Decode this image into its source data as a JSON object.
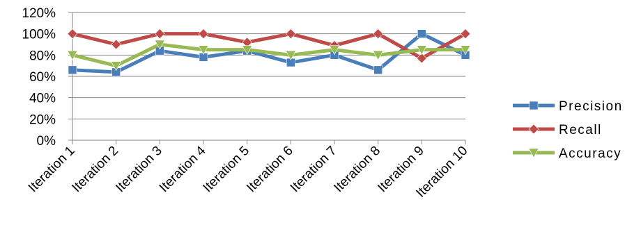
{
  "chart_data": {
    "type": "line",
    "categories": [
      "Iteration 1",
      "Iteration 2",
      "Iteration 3",
      "Iteration 4",
      "Iteration 5",
      "Iteration 6",
      "Iteration 7",
      "Iteration 8",
      "Iteration 9",
      "Iteration 10"
    ],
    "series": [
      {
        "name": "Precision",
        "color": "#4a7ebb",
        "marker": "square",
        "values": [
          66,
          64,
          84,
          78,
          84,
          73,
          80,
          66,
          100,
          80
        ]
      },
      {
        "name": "Recall",
        "color": "#be4b48",
        "marker": "diamond",
        "values": [
          100,
          90,
          100,
          100,
          92,
          100,
          89,
          100,
          77,
          100
        ]
      },
      {
        "name": "Accuracy",
        "color": "#98b954",
        "marker": "triangle-down",
        "values": [
          80,
          70,
          90,
          85,
          85,
          80,
          85,
          80,
          85,
          85
        ]
      }
    ],
    "y_ticks": [
      "0%",
      "20%",
      "40%",
      "60%",
      "80%",
      "100%",
      "120%"
    ],
    "ylim": [
      0,
      120
    ],
    "grid": true,
    "legend_position": "right"
  }
}
